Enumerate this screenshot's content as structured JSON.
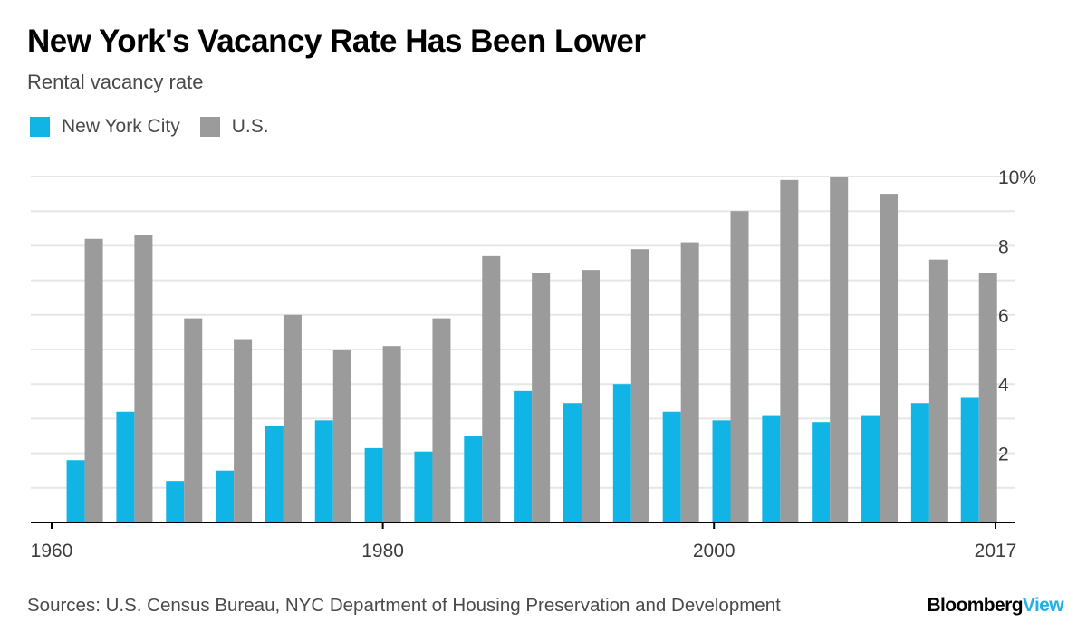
{
  "header": {
    "title": "New York's Vacancy Rate Has Been Lower",
    "subtitle": "Rental vacancy rate"
  },
  "footer": {
    "sources": "Sources: U.S. Census Bureau, NYC Department of Housing Preservation and Development",
    "logo_part1": "Bloomberg",
    "logo_part2": "View"
  },
  "colors": {
    "nyc": "#10b5e6",
    "us": "#9b9b9b",
    "grid": "#e6e6e6",
    "axis": "#000000",
    "text": "#3c3c3c"
  },
  "chart_data": {
    "type": "bar",
    "title": "New York's Vacancy Rate Has Been Lower",
    "subtitle": "Rental vacancy rate",
    "xlabel": "",
    "ylabel": "",
    "ylim": [
      0,
      10
    ],
    "grid": true,
    "legend": "top-left",
    "x_ticks": [
      {
        "label": "1960",
        "value": 1960
      },
      {
        "label": "1980",
        "value": 1980
      },
      {
        "label": "2000",
        "value": 2000
      },
      {
        "label": "2017",
        "value": 2017
      }
    ],
    "y_ticks": [
      {
        "label": "2",
        "value": 2
      },
      {
        "label": "4",
        "value": 4
      },
      {
        "label": "6",
        "value": 6
      },
      {
        "label": "8",
        "value": 8
      },
      {
        "label": "10%",
        "value": 10
      }
    ],
    "x_domain": [
      1960,
      2017
    ],
    "x": [
      1962,
      1965,
      1968,
      1971,
      1974,
      1977,
      1980,
      1983,
      1986,
      1989,
      1992,
      1995,
      1998,
      2001,
      2004,
      2007,
      2010,
      2013,
      2016
    ],
    "series": [
      {
        "name": "New York City",
        "values": [
          1.8,
          3.2,
          1.2,
          1.5,
          2.8,
          2.95,
          2.15,
          2.05,
          2.5,
          3.8,
          3.45,
          4.0,
          3.2,
          2.95,
          3.1,
          2.9,
          3.1,
          3.45,
          3.6
        ]
      },
      {
        "name": "U.S.",
        "values": [
          8.2,
          8.3,
          5.9,
          5.3,
          6.0,
          5.0,
          5.1,
          5.9,
          7.7,
          7.2,
          7.3,
          7.9,
          8.1,
          9.0,
          9.9,
          10.0,
          9.5,
          7.6,
          7.2
        ]
      }
    ]
  }
}
